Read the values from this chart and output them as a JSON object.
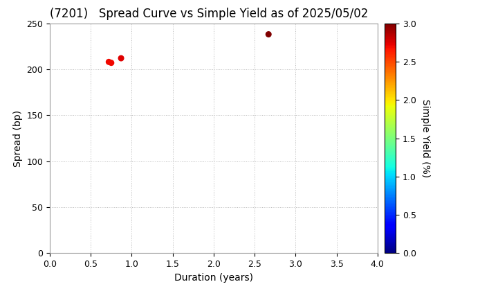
{
  "title": "(7201)   Spread Curve vs Simple Yield as of 2025/05/02",
  "xlabel": "Duration (years)",
  "ylabel": "Spread (bp)",
  "colorbar_label": "Simple Yield (%)",
  "points": [
    {
      "duration": 0.72,
      "spread": 208,
      "simple_yield": 2.7
    },
    {
      "duration": 0.75,
      "spread": 207,
      "simple_yield": 2.7
    },
    {
      "duration": 0.87,
      "spread": 212,
      "simple_yield": 2.75
    },
    {
      "duration": 2.67,
      "spread": 238,
      "simple_yield": 3.0
    }
  ],
  "xlim": [
    0.0,
    4.0
  ],
  "ylim": [
    0,
    250
  ],
  "xticks": [
    0.0,
    0.5,
    1.0,
    1.5,
    2.0,
    2.5,
    3.0,
    3.5,
    4.0
  ],
  "yticks": [
    0,
    50,
    100,
    150,
    200,
    250
  ],
  "colorbar_vmin": 0.0,
  "colorbar_vmax": 3.0,
  "colorbar_ticks": [
    0.0,
    0.5,
    1.0,
    1.5,
    2.0,
    2.5,
    3.0
  ],
  "marker_size": 30,
  "background_color": "#ffffff",
  "grid_color": "#aaaaaa",
  "title_fontsize": 12,
  "axis_fontsize": 10,
  "tick_fontsize": 9,
  "colorbar_label_fontsize": 10
}
